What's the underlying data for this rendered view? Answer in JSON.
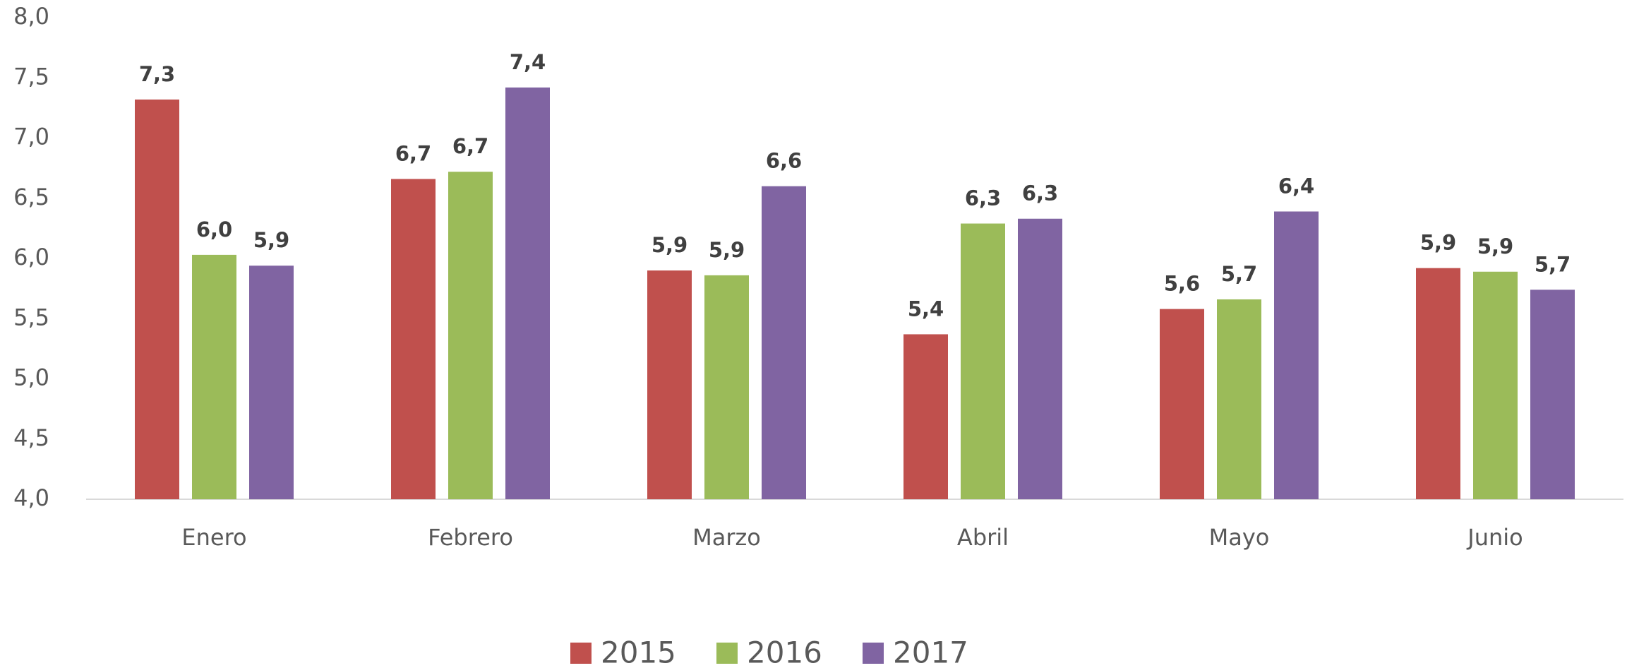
{
  "chart_data": {
    "type": "bar",
    "categories": [
      "Enero",
      "Febrero",
      "Marzo",
      "Abril",
      "Mayo",
      "Junio"
    ],
    "series": [
      {
        "name": "2015",
        "color": "#c0504d",
        "values": [
          7.32,
          6.66,
          5.9,
          5.37,
          5.58,
          5.92
        ],
        "value_labels": [
          "7,3",
          "6,7",
          "5,9",
          "5,4",
          "5,6",
          "5,9"
        ]
      },
      {
        "name": "2016",
        "color": "#9bbb59",
        "values": [
          6.03,
          6.72,
          5.86,
          6.29,
          5.66,
          5.89
        ],
        "value_labels": [
          "6,0",
          "6,7",
          "5,9",
          "6,3",
          "5,7",
          "5,9"
        ]
      },
      {
        "name": "2017",
        "color": "#8064a2",
        "values": [
          5.94,
          7.42,
          6.6,
          6.33,
          6.39,
          5.74
        ],
        "value_labels": [
          "5,9",
          "7,4",
          "6,6",
          "6,3",
          "6,4",
          "5,7"
        ]
      }
    ],
    "ylim": [
      4,
      8
    ],
    "yticks": [
      {
        "value": 4,
        "label": "4,0"
      },
      {
        "value": 4.5,
        "label": "4,5"
      },
      {
        "value": 5,
        "label": "5,0"
      },
      {
        "value": 5.5,
        "label": "5,5"
      },
      {
        "value": 6,
        "label": "6,0"
      },
      {
        "value": 6.5,
        "label": "6,5"
      },
      {
        "value": 7,
        "label": "7,0"
      },
      {
        "value": 7.5,
        "label": "7,5"
      },
      {
        "value": 8,
        "label": "8,0"
      }
    ],
    "grid": false,
    "legend": "bottom"
  }
}
